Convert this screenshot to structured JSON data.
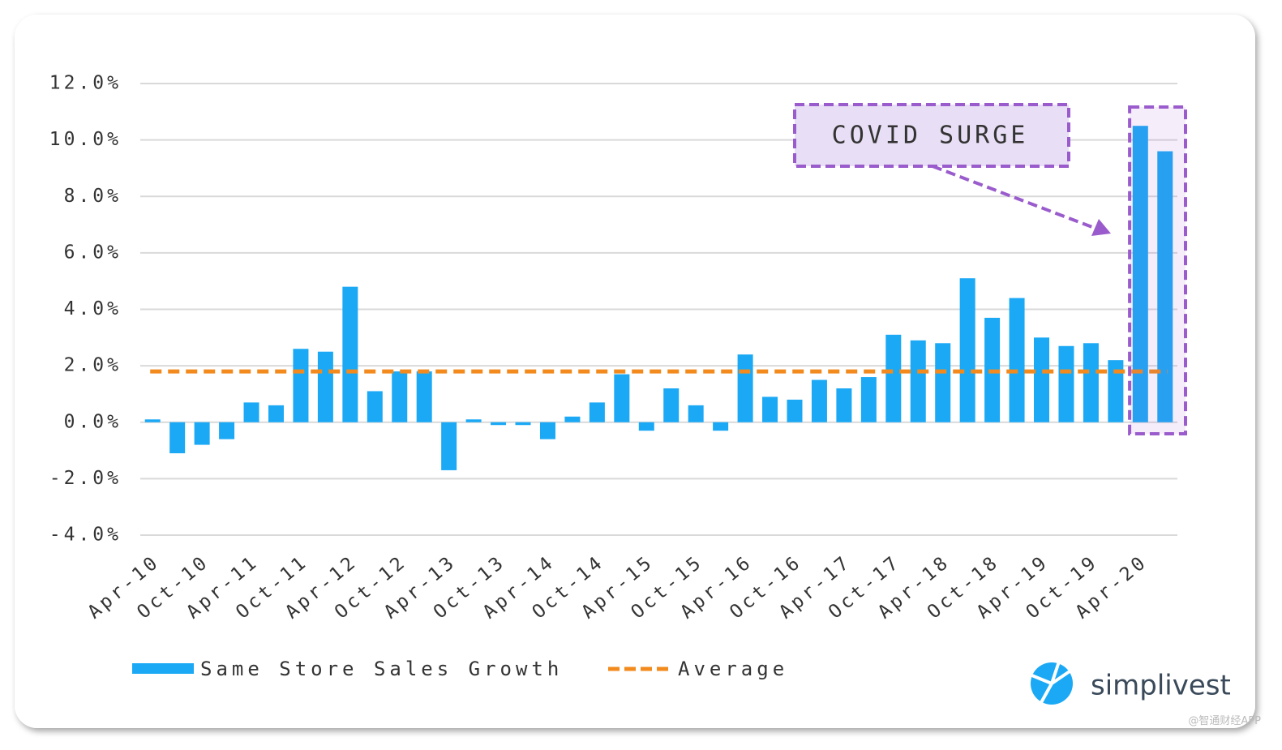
{
  "chart_data": {
    "type": "bar",
    "annotation": "COVID SURGE",
    "brand": "simplivest",
    "watermark": "@智通财经APP",
    "categories": [
      "Apr-10",
      null,
      "Oct-10",
      null,
      "Apr-11",
      null,
      "Oct-11",
      null,
      "Apr-12",
      null,
      "Oct-12",
      null,
      "Apr-13",
      null,
      "Oct-13",
      null,
      "Apr-14",
      null,
      "Oct-14",
      null,
      "Apr-15",
      null,
      "Oct-15",
      null,
      "Apr-16",
      null,
      "Oct-16",
      null,
      "Apr-17",
      null,
      "Oct-17",
      null,
      "Apr-18",
      null,
      "Oct-18",
      null,
      "Apr-19",
      null,
      "Oct-19",
      null,
      "Apr-20",
      null
    ],
    "series": [
      {
        "name": "Same Store Sales Growth",
        "color": "#1ba9f5",
        "values": [
          0.1,
          -1.1,
          -0.8,
          -0.6,
          0.7,
          0.6,
          2.6,
          2.5,
          4.8,
          1.1,
          1.8,
          1.8,
          -1.7,
          0.1,
          -0.1,
          -0.1,
          -0.6,
          0.2,
          0.7,
          1.7,
          -0.3,
          1.2,
          0.6,
          -0.3,
          2.4,
          0.9,
          0.8,
          1.5,
          1.2,
          1.6,
          3.1,
          2.9,
          2.8,
          5.1,
          3.7,
          4.4,
          3.0,
          2.7,
          2.8,
          2.2,
          10.5,
          9.6
        ]
      }
    ],
    "average": {
      "name": "Average",
      "color": "#f28a1d",
      "value": 1.8
    },
    "ylim": [
      -4,
      12
    ],
    "yticks": [
      {
        "value": -4,
        "label": "-4.0%"
      },
      {
        "value": -2,
        "label": "-2.0%"
      },
      {
        "value": 0,
        "label": "0.0%"
      },
      {
        "value": 2,
        "label": "2.0%"
      },
      {
        "value": 4,
        "label": "4.0%"
      },
      {
        "value": 6,
        "label": "6.0%"
      },
      {
        "value": 8,
        "label": "8.0%"
      },
      {
        "value": 10,
        "label": "10.0%"
      },
      {
        "value": 12,
        "label": "12.0%"
      }
    ],
    "grid": true,
    "highlight": [
      40,
      41
    ],
    "highlight_color": "#9a5ccc"
  }
}
